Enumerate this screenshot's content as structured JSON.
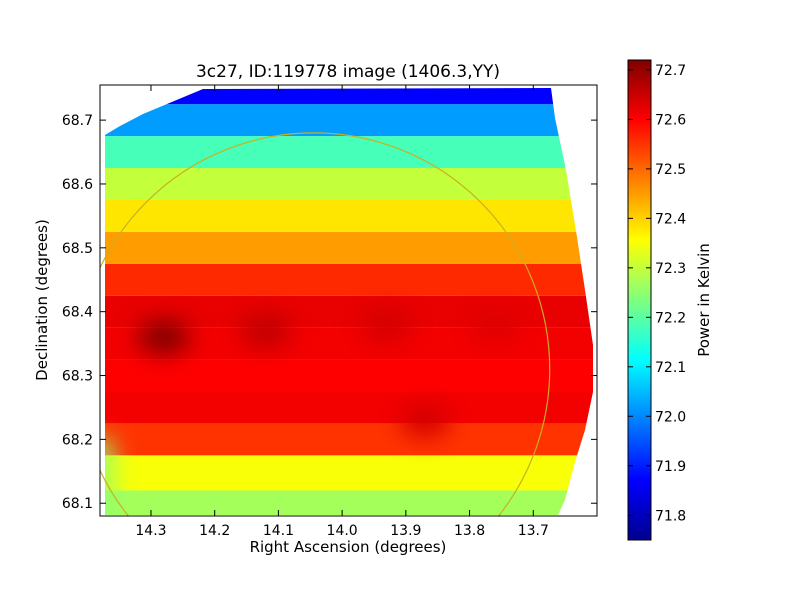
{
  "chart_data": {
    "type": "heatmap",
    "title": "3c27, ID:119778 image (1406.3,YY)",
    "xlabel": "Right Ascension (degrees)",
    "ylabel": "Declination (degrees)",
    "xlim": [
      14.38,
      13.6
    ],
    "ylim": [
      68.08,
      68.755
    ],
    "x_ticks": [
      14.3,
      14.2,
      14.1,
      14.0,
      13.9,
      13.8,
      13.7
    ],
    "x_tick_labels": [
      "14.3",
      "14.2",
      "14.1",
      "14.0",
      "13.9",
      "13.8",
      "13.7"
    ],
    "y_ticks": [
      68.1,
      68.2,
      68.3,
      68.4,
      68.5,
      68.6,
      68.7
    ],
    "y_tick_labels": [
      "68.1",
      "68.2",
      "68.3",
      "68.4",
      "68.5",
      "68.6",
      "68.7"
    ],
    "colorbar": {
      "label": "Power in Kelvin",
      "colormap": "jet",
      "range": [
        71.75,
        72.72
      ],
      "ticks": [
        71.8,
        71.9,
        72.0,
        72.1,
        72.2,
        72.3,
        72.4,
        72.5,
        72.6,
        72.7
      ],
      "tick_labels": [
        "71.8",
        "71.9",
        "72.0",
        "72.1",
        "72.2",
        "72.3",
        "72.4",
        "72.5",
        "72.6",
        "72.7"
      ]
    },
    "profile": {
      "dec": [
        68.09,
        68.15,
        68.2,
        68.25,
        68.3,
        68.35,
        68.4,
        68.45,
        68.5,
        68.55,
        68.6,
        68.65,
        68.7,
        68.75
      ],
      "power": [
        72.27,
        72.35,
        72.55,
        72.61,
        72.6,
        72.61,
        72.62,
        72.56,
        72.45,
        72.38,
        72.3,
        72.18,
        72.02,
        71.87
      ]
    },
    "hotspots": [
      {
        "ra": 14.28,
        "dec": 68.36,
        "power": 72.72
      },
      {
        "ra": 14.12,
        "dec": 68.37,
        "power": 72.66
      },
      {
        "ra": 13.93,
        "dec": 68.38,
        "power": 72.64
      },
      {
        "ra": 13.87,
        "dec": 68.23,
        "power": 72.64
      },
      {
        "ra": 13.76,
        "dec": 68.38,
        "power": 72.63
      }
    ],
    "cool_edge": {
      "ra_from": 14.38,
      "ra_to": 14.1,
      "power": 72.25
    },
    "circle": {
      "center_ra": 14.045,
      "center_dec": 68.31,
      "radius_deg": 0.37,
      "color": "#c8b020"
    },
    "grid": false,
    "legend": "colorbar-right"
  }
}
